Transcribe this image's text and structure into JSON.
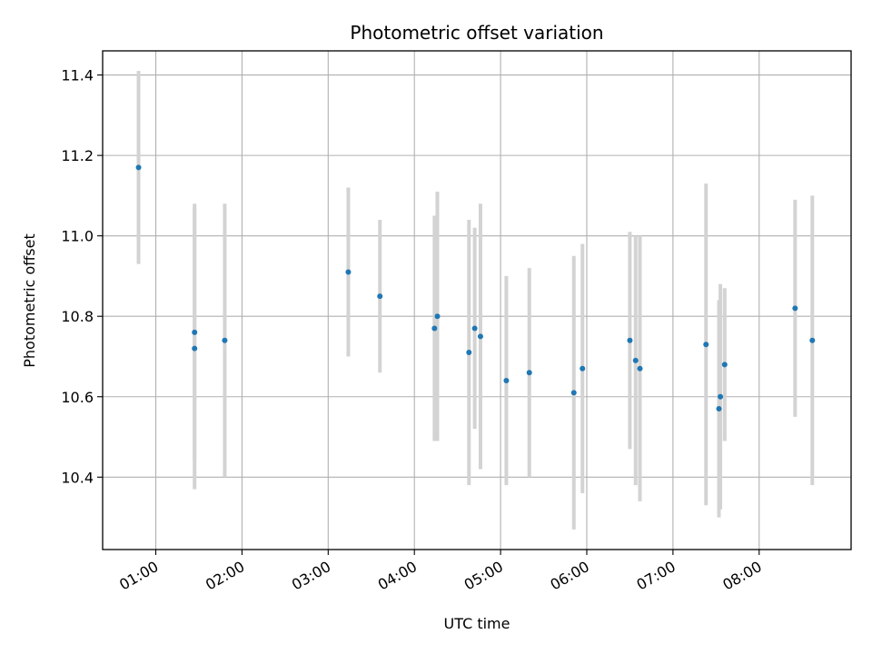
{
  "chart_data": {
    "type": "scatter",
    "title": "Photometric offset variation",
    "xlabel": "UTC time",
    "ylabel": "Photometric offset",
    "x_ticks": [
      "01:00",
      "02:00",
      "03:00",
      "04:00",
      "05:00",
      "06:00",
      "07:00",
      "08:00"
    ],
    "y_ticks": [
      "10.4",
      "10.6",
      "10.8",
      "11.0",
      "11.2",
      "11.4"
    ],
    "xlim": [
      "00:23",
      "09:04"
    ],
    "ylim": [
      10.22,
      11.46
    ],
    "grid": true,
    "legend": "none",
    "point_color": "#1f77b4",
    "errorbar_color": "#d3d3d3",
    "points": [
      {
        "time": "00:48",
        "y": 11.17,
        "err": 0.24
      },
      {
        "time": "01:27",
        "y": 10.72,
        "err": 0.35
      },
      {
        "time": "01:27",
        "y": 10.76,
        "err": 0.32
      },
      {
        "time": "01:48",
        "y": 10.74,
        "err": 0.34
      },
      {
        "time": "03:14",
        "y": 10.91,
        "err": 0.21
      },
      {
        "time": "03:36",
        "y": 10.85,
        "err": 0.19
      },
      {
        "time": "04:14",
        "y": 10.77,
        "err": 0.28
      },
      {
        "time": "04:16",
        "y": 10.8,
        "err": 0.31
      },
      {
        "time": "04:38",
        "y": 10.71,
        "err": 0.33
      },
      {
        "time": "04:42",
        "y": 10.77,
        "err": 0.25
      },
      {
        "time": "04:46",
        "y": 10.75,
        "err": 0.33
      },
      {
        "time": "05:04",
        "y": 10.64,
        "err": 0.26
      },
      {
        "time": "05:20",
        "y": 10.66,
        "err": 0.26
      },
      {
        "time": "05:51",
        "y": 10.61,
        "err": 0.34
      },
      {
        "time": "05:57",
        "y": 10.67,
        "err": 0.31
      },
      {
        "time": "06:30",
        "y": 10.74,
        "err": 0.27
      },
      {
        "time": "06:34",
        "y": 10.69,
        "err": 0.31
      },
      {
        "time": "06:37",
        "y": 10.67,
        "err": 0.33
      },
      {
        "time": "07:23",
        "y": 10.73,
        "err": 0.4
      },
      {
        "time": "07:32",
        "y": 10.57,
        "err": 0.27
      },
      {
        "time": "07:33",
        "y": 10.6,
        "err": 0.28
      },
      {
        "time": "07:36",
        "y": 10.68,
        "err": 0.19
      },
      {
        "time": "08:25",
        "y": 10.82,
        "err": 0.27
      },
      {
        "time": "08:37",
        "y": 10.74,
        "err": 0.36
      }
    ]
  }
}
